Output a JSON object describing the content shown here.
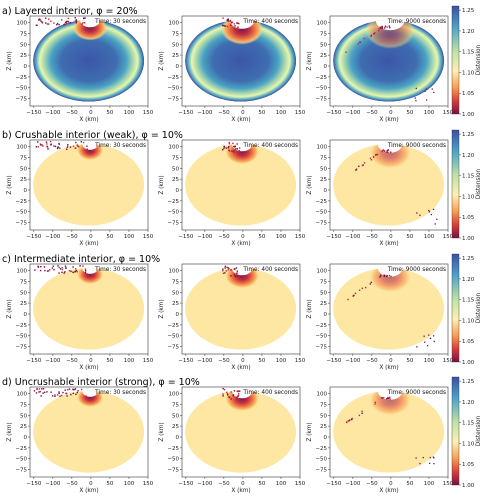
{
  "rows": [
    {
      "title": "a) Layered interior, φ = 20%",
      "interior": "layered",
      "panels": [
        {
          "time_label": "Time: 30 seconds",
          "stage": 0
        },
        {
          "time_label": "Time: 400 seconds",
          "stage": 1
        },
        {
          "time_label": "Time: 9000 seconds",
          "stage": 2
        }
      ]
    },
    {
      "title": "b) Crushable interior (weak), φ = 10%",
      "interior": "uniform",
      "panels": [
        {
          "time_label": "Time: 30 seconds",
          "stage": 0
        },
        {
          "time_label": "Time: 400 seconds",
          "stage": 1
        },
        {
          "time_label": "Time: 9000 seconds",
          "stage": 2
        }
      ]
    },
    {
      "title": "c) Intermediate interior, φ = 10%",
      "interior": "uniform",
      "panels": [
        {
          "time_label": "Time: 30 seconds",
          "stage": 0
        },
        {
          "time_label": "Time: 400 seconds",
          "stage": 1
        },
        {
          "time_label": "Time: 9000 seconds",
          "stage": 2
        }
      ]
    },
    {
      "title": "d) Uncrushable interior (strong), φ = 10%",
      "interior": "uniform",
      "panels": [
        {
          "time_label": "Time: 30 seconds",
          "stage": 0
        },
        {
          "time_label": "Time: 400 seconds",
          "stage": 1
        },
        {
          "time_label": "Time: 9000 seconds",
          "stage": 2
        }
      ]
    }
  ],
  "axes": {
    "xlabel": "X (km)",
    "ylabel": "Z (km)",
    "xticks": [
      "−150",
      "−100",
      "−50",
      "0",
      "50",
      "100",
      "150"
    ],
    "yticks": [
      "100",
      "75",
      "50",
      "25",
      "0",
      "−25",
      "−50",
      "−75"
    ],
    "xlim": [
      -160,
      150
    ],
    "ylim": [
      -92,
      115
    ]
  },
  "colorbar": {
    "label": "Distension",
    "ticks": [
      "1.25",
      "1.20",
      "1.15",
      "1.10",
      "1.05",
      "1.00"
    ],
    "range": [
      1.0,
      1.26
    ],
    "colors": {
      "top": "#3a4fa3",
      "upper": "#4fa3c9",
      "mid": "#bfe2a8",
      "light": "#fdf0b4",
      "orange": "#f9a055",
      "red": "#d73d3a",
      "bottom": "#7a0f44"
    },
    "body_fill": "#fde7a3"
  }
}
